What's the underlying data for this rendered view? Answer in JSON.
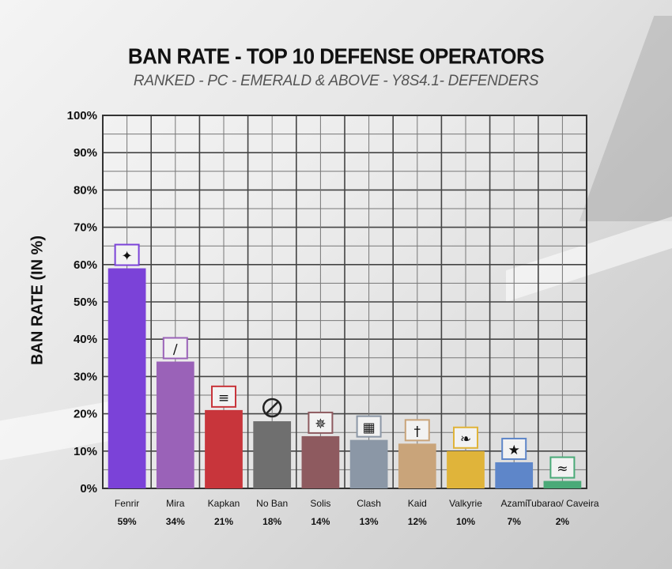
{
  "title": "BAN RATE - TOP 10 DEFENSE OPERATORS",
  "subtitle": "RANKED - PC - EMERALD & ABOVE - Y8S4.1- DEFENDERS",
  "chart_data": {
    "type": "bar",
    "title": "BAN RATE - TOP 10 DEFENSE OPERATORS",
    "subtitle": "RANKED - PC - EMERALD & ABOVE - Y8S4.1- DEFENDERS",
    "xlabel": "",
    "ylabel": "BAN RATE (IN %)",
    "ylim": [
      0,
      100
    ],
    "yticks": [
      "0%",
      "10%",
      "20%",
      "30%",
      "40%",
      "50%",
      "60%",
      "70%",
      "80%",
      "90%",
      "100%"
    ],
    "grid": true,
    "categories": [
      "Fenrir",
      "Mira",
      "Kapkan",
      "No Ban",
      "Solis",
      "Clash",
      "Kaid",
      "Valkyrie",
      "Azami",
      "Tubarao/ Caveira"
    ],
    "value_labels": [
      "59%",
      "34%",
      "21%",
      "18%",
      "14%",
      "13%",
      "12%",
      "10%",
      "7%",
      "2%"
    ],
    "values": [
      59,
      34,
      21,
      18,
      14,
      13,
      12,
      10,
      7,
      2
    ],
    "colors": [
      "#7b42d8",
      "#9a62b8",
      "#c8353b",
      "#6f6f6f",
      "#8e5a5f",
      "#8b97a6",
      "#c9a47a",
      "#e0b43a",
      "#5e86c9",
      "#4aaa78"
    ],
    "icons": [
      "fenrir-icon",
      "mira-icon",
      "kapkan-icon",
      "no-ban-icon",
      "solis-icon",
      "clash-icon",
      "kaid-icon",
      "valkyrie-icon",
      "azami-icon",
      "tubarao-caveira-icon"
    ]
  }
}
